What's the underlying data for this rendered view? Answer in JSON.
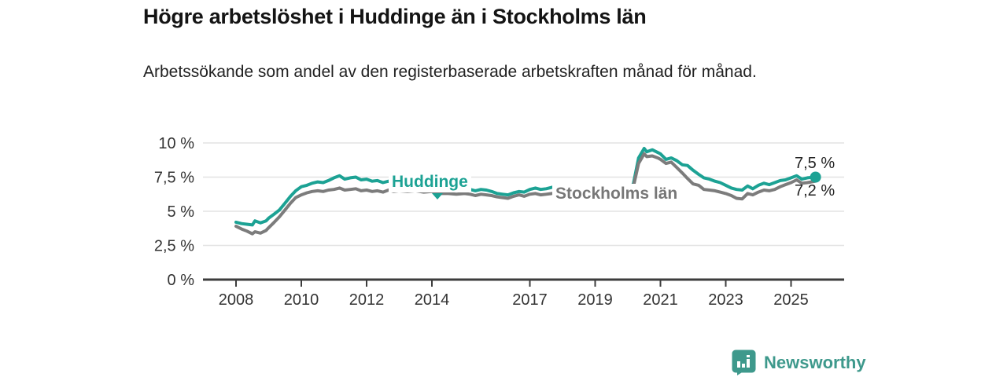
{
  "header": {
    "title": "Högre arbetslöshet i Huddinge än i Stockholms län",
    "subtitle": "Arbetssökande som andel av den registerbaserade arbetskraften månad för månad."
  },
  "chart_data": {
    "type": "line",
    "title": "Högre arbetslöshet i Huddinge än i Stockholms län",
    "subtitle": "Arbetssökande som andel av den registerbaserade arbetskraften månad för månad.",
    "grid": true,
    "legend_position": "inline-labels",
    "colors": {
      "huddinge": "#1CA294",
      "stockholm": "#7C7C7C",
      "grid": "#E3E3E3",
      "axis": "#3D3D3D",
      "tick_text": "#333333"
    },
    "y_axis": {
      "unit": "%",
      "range": [
        0,
        10.5
      ],
      "ticks": [
        {
          "value": 0,
          "label": "0 %"
        },
        {
          "value": 2.5,
          "label": "2,5 %"
        },
        {
          "value": 5,
          "label": "5 %"
        },
        {
          "value": 7.5,
          "label": "7,5 %"
        },
        {
          "value": 10,
          "label": "10 %"
        }
      ]
    },
    "x_axis": {
      "range": [
        2007.0,
        2026.6
      ],
      "ticks": [
        {
          "value": 2008,
          "label": "2008"
        },
        {
          "value": 2010,
          "label": "2010"
        },
        {
          "value": 2012,
          "label": "2012"
        },
        {
          "value": 2014,
          "label": "2014"
        },
        {
          "value": 2017,
          "label": "2017"
        },
        {
          "value": 2019,
          "label": "2019"
        },
        {
          "value": 2021,
          "label": "2021"
        },
        {
          "value": 2023,
          "label": "2023"
        },
        {
          "value": 2025,
          "label": "2025"
        }
      ]
    },
    "series": [
      {
        "name": "Huddinge",
        "color": "#1CA294",
        "end_value_label": "7,5 %",
        "end_dot": true,
        "points": [
          [
            2008.0,
            4.2
          ],
          [
            2008.17,
            4.1
          ],
          [
            2008.33,
            4.05
          ],
          [
            2008.5,
            4.0
          ],
          [
            2008.58,
            4.3
          ],
          [
            2008.75,
            4.15
          ],
          [
            2008.92,
            4.3
          ],
          [
            2009.0,
            4.5
          ],
          [
            2009.17,
            4.8
          ],
          [
            2009.33,
            5.1
          ],
          [
            2009.5,
            5.6
          ],
          [
            2009.67,
            6.1
          ],
          [
            2009.83,
            6.5
          ],
          [
            2010.0,
            6.8
          ],
          [
            2010.17,
            6.9
          ],
          [
            2010.33,
            7.05
          ],
          [
            2010.5,
            7.15
          ],
          [
            2010.67,
            7.1
          ],
          [
            2010.83,
            7.25
          ],
          [
            2011.0,
            7.45
          ],
          [
            2011.17,
            7.6
          ],
          [
            2011.33,
            7.35
          ],
          [
            2011.5,
            7.45
          ],
          [
            2011.67,
            7.5
          ],
          [
            2011.83,
            7.3
          ],
          [
            2012.0,
            7.35
          ],
          [
            2012.17,
            7.2
          ],
          [
            2012.33,
            7.25
          ],
          [
            2012.5,
            7.1
          ],
          [
            2012.67,
            7.2
          ],
          [
            2012.83,
            7.05
          ],
          [
            2013.0,
            7.1
          ],
          [
            2013.25,
            7.0
          ],
          [
            2013.5,
            7.05
          ],
          [
            2013.75,
            6.9
          ],
          [
            2014.0,
            6.95
          ],
          [
            2014.25,
            6.8
          ],
          [
            2014.5,
            6.75
          ],
          [
            2014.75,
            6.7
          ],
          [
            2015.0,
            6.65
          ],
          [
            2015.17,
            6.6
          ],
          [
            2015.33,
            6.5
          ],
          [
            2015.5,
            6.6
          ],
          [
            2015.67,
            6.55
          ],
          [
            2015.83,
            6.45
          ],
          [
            2016.0,
            6.3
          ],
          [
            2016.17,
            6.25
          ],
          [
            2016.33,
            6.2
          ],
          [
            2016.5,
            6.35
          ],
          [
            2016.67,
            6.45
          ],
          [
            2016.83,
            6.4
          ],
          [
            2017.0,
            6.6
          ],
          [
            2017.17,
            6.7
          ],
          [
            2017.33,
            6.6
          ],
          [
            2017.5,
            6.65
          ],
          [
            2017.67,
            6.75
          ],
          [
            2017.83,
            6.85
          ],
          [
            2018.0,
            6.8
          ],
          [
            2018.25,
            6.7
          ],
          [
            2018.5,
            6.75
          ],
          [
            2018.75,
            6.65
          ],
          [
            2019.0,
            6.6
          ],
          [
            2019.25,
            6.65
          ],
          [
            2019.5,
            6.55
          ],
          [
            2019.75,
            6.45
          ],
          [
            2020.0,
            6.55
          ],
          [
            2020.17,
            7.0
          ],
          [
            2020.33,
            8.9
          ],
          [
            2020.5,
            9.6
          ],
          [
            2020.58,
            9.35
          ],
          [
            2020.75,
            9.5
          ],
          [
            2020.92,
            9.3
          ],
          [
            2021.0,
            9.2
          ],
          [
            2021.17,
            8.8
          ],
          [
            2021.33,
            8.9
          ],
          [
            2021.5,
            8.7
          ],
          [
            2021.67,
            8.4
          ],
          [
            2021.83,
            8.35
          ],
          [
            2022.0,
            8.0
          ],
          [
            2022.17,
            7.7
          ],
          [
            2022.33,
            7.45
          ],
          [
            2022.5,
            7.35
          ],
          [
            2022.67,
            7.2
          ],
          [
            2022.83,
            7.1
          ],
          [
            2023.0,
            6.9
          ],
          [
            2023.17,
            6.7
          ],
          [
            2023.33,
            6.6
          ],
          [
            2023.5,
            6.55
          ],
          [
            2023.67,
            6.85
          ],
          [
            2023.83,
            6.65
          ],
          [
            2024.0,
            6.9
          ],
          [
            2024.17,
            7.05
          ],
          [
            2024.33,
            6.95
          ],
          [
            2024.5,
            7.1
          ],
          [
            2024.67,
            7.25
          ],
          [
            2024.83,
            7.3
          ],
          [
            2025.0,
            7.45
          ],
          [
            2025.17,
            7.6
          ],
          [
            2025.33,
            7.35
          ],
          [
            2025.5,
            7.45
          ],
          [
            2025.75,
            7.5
          ]
        ]
      },
      {
        "name": "Stockholms län",
        "color": "#7C7C7C",
        "end_value_label": "7,2 %",
        "end_dot": false,
        "points": [
          [
            2008.0,
            3.9
          ],
          [
            2008.17,
            3.7
          ],
          [
            2008.33,
            3.55
          ],
          [
            2008.5,
            3.35
          ],
          [
            2008.58,
            3.5
          ],
          [
            2008.75,
            3.4
          ],
          [
            2008.92,
            3.6
          ],
          [
            2009.0,
            3.8
          ],
          [
            2009.17,
            4.2
          ],
          [
            2009.33,
            4.6
          ],
          [
            2009.5,
            5.1
          ],
          [
            2009.67,
            5.6
          ],
          [
            2009.83,
            6.0
          ],
          [
            2010.0,
            6.2
          ],
          [
            2010.17,
            6.35
          ],
          [
            2010.33,
            6.45
          ],
          [
            2010.5,
            6.5
          ],
          [
            2010.67,
            6.45
          ],
          [
            2010.83,
            6.55
          ],
          [
            2011.0,
            6.6
          ],
          [
            2011.17,
            6.7
          ],
          [
            2011.33,
            6.55
          ],
          [
            2011.5,
            6.6
          ],
          [
            2011.67,
            6.65
          ],
          [
            2011.83,
            6.5
          ],
          [
            2012.0,
            6.55
          ],
          [
            2012.17,
            6.45
          ],
          [
            2012.33,
            6.5
          ],
          [
            2012.5,
            6.4
          ],
          [
            2012.67,
            6.55
          ],
          [
            2012.83,
            6.45
          ],
          [
            2013.0,
            6.5
          ],
          [
            2013.25,
            6.45
          ],
          [
            2013.5,
            6.5
          ],
          [
            2013.75,
            6.4
          ],
          [
            2014.0,
            6.45
          ],
          [
            2014.25,
            6.3
          ],
          [
            2014.5,
            6.3
          ],
          [
            2014.75,
            6.25
          ],
          [
            2015.0,
            6.3
          ],
          [
            2015.17,
            6.25
          ],
          [
            2015.33,
            6.15
          ],
          [
            2015.5,
            6.25
          ],
          [
            2015.67,
            6.2
          ],
          [
            2015.83,
            6.15
          ],
          [
            2016.0,
            6.05
          ],
          [
            2016.17,
            6.0
          ],
          [
            2016.33,
            5.95
          ],
          [
            2016.5,
            6.1
          ],
          [
            2016.67,
            6.2
          ],
          [
            2016.83,
            6.1
          ],
          [
            2017.0,
            6.25
          ],
          [
            2017.17,
            6.3
          ],
          [
            2017.33,
            6.2
          ],
          [
            2017.5,
            6.25
          ],
          [
            2017.67,
            6.3
          ],
          [
            2017.83,
            6.35
          ],
          [
            2018.0,
            6.3
          ],
          [
            2018.25,
            6.2
          ],
          [
            2018.5,
            6.3
          ],
          [
            2018.75,
            6.2
          ],
          [
            2019.0,
            6.2
          ],
          [
            2019.25,
            6.3
          ],
          [
            2019.5,
            6.25
          ],
          [
            2019.75,
            6.3
          ],
          [
            2020.0,
            6.4
          ],
          [
            2020.17,
            6.8
          ],
          [
            2020.33,
            8.5
          ],
          [
            2020.5,
            9.2
          ],
          [
            2020.58,
            9.0
          ],
          [
            2020.75,
            9.05
          ],
          [
            2020.92,
            8.9
          ],
          [
            2021.0,
            8.8
          ],
          [
            2021.17,
            8.5
          ],
          [
            2021.33,
            8.6
          ],
          [
            2021.5,
            8.2
          ],
          [
            2021.67,
            7.8
          ],
          [
            2021.83,
            7.4
          ],
          [
            2022.0,
            7.0
          ],
          [
            2022.17,
            6.9
          ],
          [
            2022.33,
            6.6
          ],
          [
            2022.5,
            6.55
          ],
          [
            2022.67,
            6.5
          ],
          [
            2022.83,
            6.4
          ],
          [
            2023.0,
            6.3
          ],
          [
            2023.17,
            6.15
          ],
          [
            2023.33,
            5.95
          ],
          [
            2023.5,
            5.9
          ],
          [
            2023.67,
            6.3
          ],
          [
            2023.83,
            6.2
          ],
          [
            2024.0,
            6.4
          ],
          [
            2024.17,
            6.55
          ],
          [
            2024.33,
            6.5
          ],
          [
            2024.5,
            6.6
          ],
          [
            2024.67,
            6.8
          ],
          [
            2024.83,
            6.95
          ],
          [
            2025.0,
            7.1
          ],
          [
            2025.17,
            7.3
          ],
          [
            2025.33,
            7.05
          ],
          [
            2025.5,
            7.1
          ],
          [
            2025.75,
            7.2
          ]
        ]
      }
    ],
    "annotations": {
      "huddinge_label": "Huddinge",
      "stockholm_label": "Stockholms län",
      "end_label_top": "7,5 %",
      "end_label_bottom": "7,2 %"
    }
  },
  "footer": {
    "brand": "Newsworthy"
  }
}
